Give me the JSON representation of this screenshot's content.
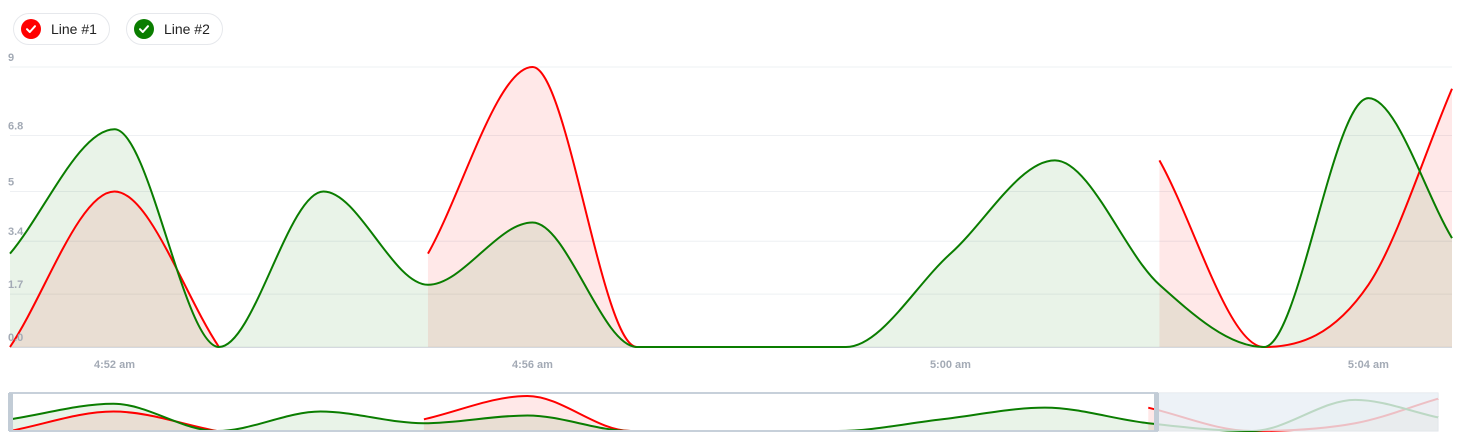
{
  "colors": {
    "line1": "#ff0000",
    "line2": "#0a7d00",
    "axis": "#a3aab5",
    "grid": "#eef0f3"
  },
  "legend": [
    {
      "label": "Line #1",
      "color": "#ff0000",
      "icon": "check-icon"
    },
    {
      "label": "Line #2",
      "color": "#0a7d00",
      "icon": "check-icon"
    }
  ],
  "chart_data": {
    "type": "area",
    "xlabel": "",
    "ylabel": "",
    "x": [
      "4:51:00",
      "4:52:00",
      "4:53:00",
      "4:54:00",
      "4:55:00",
      "4:56:00",
      "4:57:00",
      "4:58:00",
      "4:59:00",
      "5:00:00",
      "5:01:00",
      "5:02:00",
      "5:03:00",
      "5:04:00",
      "5:04:48"
    ],
    "y_ticks": [
      "0.0",
      "1.7",
      "3.4",
      "5",
      "6.8",
      "9"
    ],
    "x_ticks": [
      {
        "label": "4:52 am",
        "at": "4:52:00"
      },
      {
        "label": "4:56 am",
        "at": "4:56:00"
      },
      {
        "label": "5:00 am",
        "at": "5:00:00"
      },
      {
        "label": "5:04 am",
        "at": "5:04:00"
      }
    ],
    "ylim": [
      0,
      9
    ],
    "grid": true,
    "legend_position": "top-left",
    "series": [
      {
        "name": "Line #1",
        "color": "#ff0000",
        "values": [
          0,
          5,
          0,
          null,
          3,
          9,
          0,
          0,
          0,
          null,
          null,
          6,
          0,
          2,
          8.3
        ]
      },
      {
        "name": "Line #2",
        "color": "#0a7d00",
        "values": [
          3,
          7,
          0,
          5,
          2,
          4,
          0,
          0,
          0,
          3,
          6,
          2,
          0,
          8,
          3.5
        ]
      }
    ]
  }
}
